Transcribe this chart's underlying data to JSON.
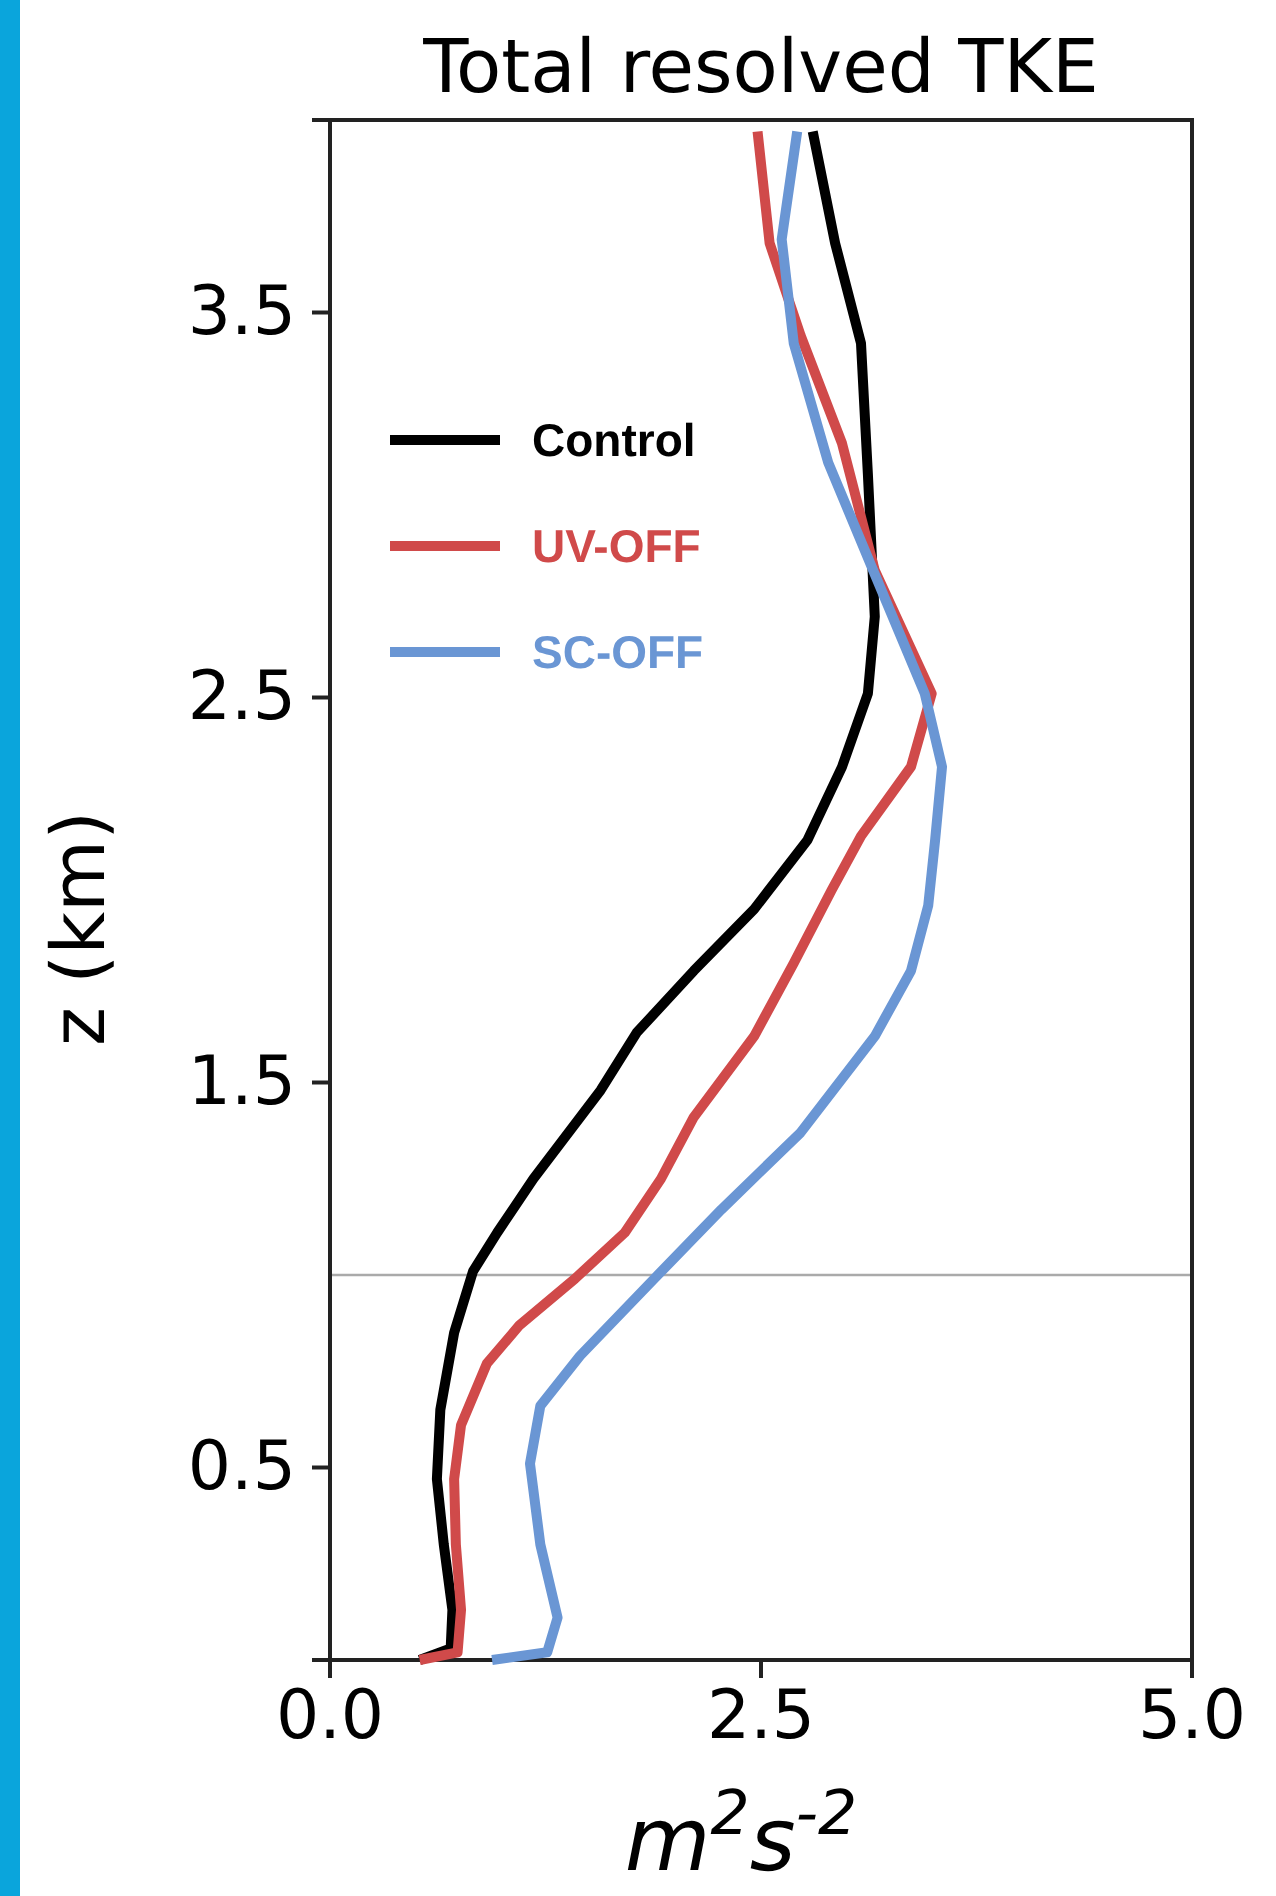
{
  "chart_data": {
    "type": "line",
    "title": "Total resolved TKE",
    "xlabel": "m$^{2}$s$^{-2}$",
    "ylabel": "z (km)",
    "xlim": [
      0,
      5
    ],
    "ylim": [
      0,
      4
    ],
    "xticks": [
      {
        "value": 0,
        "label": "0.0"
      },
      2.5,
      {
        "value": 5,
        "label": "5.0"
      }
    ],
    "yticks": [
      0.5,
      1.5,
      2.5,
      3.5
    ],
    "legend": "top left",
    "grid": false,
    "marker": "none",
    "line_style": "solid",
    "ref_lines": [
      {
        "axis": "y",
        "value": 1.0,
        "color": "#aaaaaa"
      }
    ],
    "series": [
      {
        "name": "Control",
        "color": "#000000",
        "x": [
          0.52,
          0.7,
          0.71,
          0.66,
          0.62,
          0.64,
          0.72,
          0.83,
          0.97,
          1.18,
          1.57,
          1.78,
          2.11,
          2.46,
          2.77,
          2.97,
          3.12,
          3.16,
          3.12,
          3.08,
          2.93,
          2.8
        ],
        "values": [
          0,
          0.03,
          0.13,
          0.3,
          0.47,
          0.65,
          0.85,
          1.01,
          1.11,
          1.25,
          1.48,
          1.63,
          1.79,
          1.95,
          2.13,
          2.32,
          2.51,
          2.71,
          3.08,
          3.42,
          3.68,
          3.97
        ]
      },
      {
        "name": "UV-OFF",
        "color": "#d04a4a",
        "x": [
          0.52,
          0.74,
          0.76,
          0.73,
          0.72,
          0.76,
          0.91,
          1.1,
          1.42,
          1.71,
          1.92,
          2.11,
          2.46,
          2.69,
          2.91,
          3.08,
          3.37,
          3.49,
          3.16,
          2.97,
          2.73,
          2.55,
          2.48
        ],
        "values": [
          0,
          0.02,
          0.13,
          0.3,
          0.47,
          0.61,
          0.77,
          0.87,
          0.99,
          1.11,
          1.25,
          1.41,
          1.62,
          1.81,
          2.0,
          2.14,
          2.32,
          2.51,
          2.83,
          3.16,
          3.44,
          3.68,
          3.97
        ]
      },
      {
        "name": "SC-OFF",
        "color": "#6a96d4",
        "x": [
          0.94,
          1.26,
          1.32,
          1.22,
          1.16,
          1.22,
          1.45,
          1.88,
          2.27,
          2.73,
          3.16,
          3.37,
          3.47,
          3.51,
          3.55,
          3.45,
          3.16,
          2.89,
          2.69,
          2.62,
          2.71
        ],
        "values": [
          0,
          0.02,
          0.11,
          0.3,
          0.51,
          0.66,
          0.79,
          0.99,
          1.17,
          1.37,
          1.62,
          1.79,
          1.96,
          2.13,
          2.32,
          2.51,
          2.82,
          3.11,
          3.42,
          3.69,
          3.97
        ]
      }
    ]
  }
}
